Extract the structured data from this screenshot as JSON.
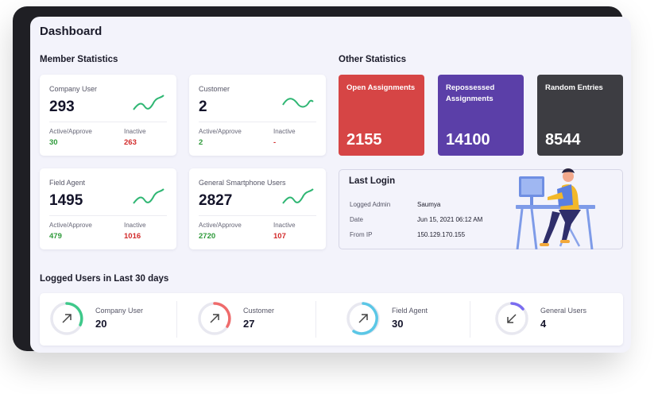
{
  "page": {
    "title": "Dashboard"
  },
  "member_statistics": {
    "title": "Member Statistics",
    "cards": [
      {
        "label": "Company User",
        "value": "293",
        "active_label": "Active/Approve",
        "active_value": "30",
        "inactive_label": "Inactive",
        "inactive_value": "263"
      },
      {
        "label": "Customer",
        "value": "2",
        "active_label": "Active/Approve",
        "active_value": "2",
        "inactive_label": "Inactive",
        "inactive_value": "-"
      },
      {
        "label": "Field Agent",
        "value": "1495",
        "active_label": "Active/Approve",
        "active_value": "479",
        "inactive_label": "Inactive",
        "inactive_value": "1016"
      },
      {
        "label": "General Smartphone Users",
        "value": "2827",
        "active_label": "Active/Approve",
        "active_value": "2720",
        "inactive_label": "Inactive",
        "inactive_value": "107"
      }
    ]
  },
  "other_statistics": {
    "title": "Other Statistics",
    "tiles": [
      {
        "label": "Open Assignments",
        "value": "2155",
        "color": "#d64545"
      },
      {
        "label": "Repossessed Assignments",
        "value": "14100",
        "color": "#5b3fa8"
      },
      {
        "label": "Random Entries",
        "value": "8544",
        "color": "#3d3d42"
      }
    ]
  },
  "last_login": {
    "title": "Last Login",
    "rows": [
      {
        "label": "Logged Admin",
        "value": "Saumya"
      },
      {
        "label": "Date",
        "value": "Jun 15, 2021 06:12 AM"
      },
      {
        "label": "From IP",
        "value": "150.129.170.155"
      }
    ]
  },
  "logged_users": {
    "title": "Logged Users in Last 30 days",
    "items": [
      {
        "label": "Company User",
        "value": "20",
        "ring_color": "#3ec98a",
        "icon": "arrow-up-right-icon"
      },
      {
        "label": "Customer",
        "value": "27",
        "ring_color": "#ef6b6b",
        "icon": "arrow-up-right-icon"
      },
      {
        "label": "Field Agent",
        "value": "30",
        "ring_color": "#5bc7e6",
        "icon": "arrow-up-right-icon"
      },
      {
        "label": "General Users",
        "value": "4",
        "ring_color": "#7a6cf0",
        "icon": "arrow-down-left-icon"
      }
    ]
  },
  "colors": {
    "accent_green": "#2e9a3a",
    "accent_red": "#d22a2a",
    "spark_green": "#2fb673"
  }
}
